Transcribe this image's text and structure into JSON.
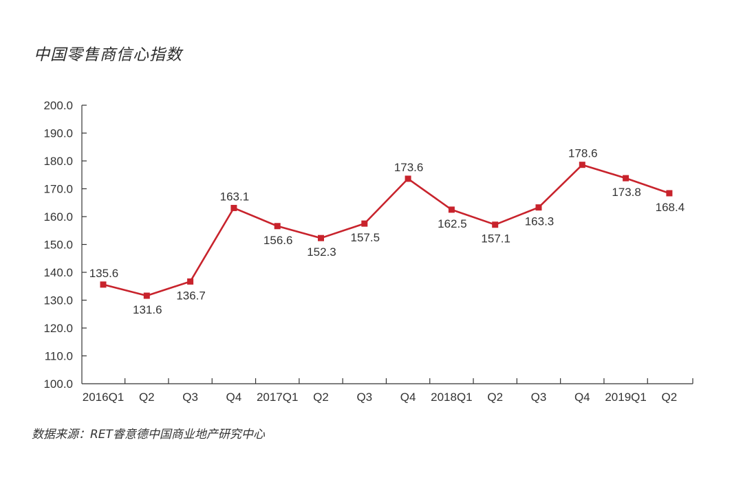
{
  "chart_data": {
    "type": "line",
    "title": "中国零售商信心指数",
    "source": "数据来源：RET睿意德中国商业地产研究中心",
    "categories": [
      "2016Q1",
      "Q2",
      "Q3",
      "Q4",
      "2017Q1",
      "Q2",
      "Q3",
      "Q4",
      "2018Q1",
      "Q2",
      "Q3",
      "Q4",
      "2019Q1",
      "Q2"
    ],
    "values": [
      135.6,
      131.6,
      136.7,
      163.1,
      156.6,
      152.3,
      157.5,
      173.6,
      162.5,
      157.1,
      163.3,
      178.6,
      173.8,
      168.4
    ],
    "ylim": [
      100,
      200
    ],
    "yticks": [
      "100.0",
      "110.0",
      "120.0",
      "130.0",
      "140.0",
      "150.0",
      "160.0",
      "170.0",
      "180.0",
      "190.0",
      "200.0"
    ],
    "label_placement": [
      "above",
      "below",
      "below",
      "above",
      "below",
      "below",
      "below",
      "above",
      "below",
      "below",
      "below",
      "above",
      "below",
      "below"
    ],
    "line_color": "#c8232c",
    "grid": false,
    "legend": "none"
  }
}
